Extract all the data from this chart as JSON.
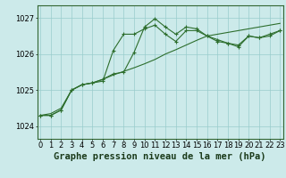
{
  "background_color": "#cceaea",
  "grid_color": "#99cccc",
  "line_color": "#2d6e2d",
  "xlabel": "Graphe pression niveau de la mer (hPa)",
  "xlabel_fontsize": 7.5,
  "tick_fontsize": 6,
  "ylabel_ticks": [
    1024,
    1025,
    1026,
    1027
  ],
  "xlim": [
    -0.3,
    23.3
  ],
  "ylim": [
    1023.65,
    1027.35
  ],
  "x": [
    0,
    1,
    2,
    3,
    4,
    5,
    6,
    7,
    8,
    9,
    10,
    11,
    12,
    13,
    14,
    15,
    16,
    17,
    18,
    19,
    20,
    21,
    22,
    23
  ],
  "line1_x": [
    0,
    1,
    2,
    3,
    4,
    5,
    6,
    7,
    8,
    9,
    10,
    11,
    12,
    13,
    14,
    15,
    16,
    17,
    18,
    19,
    20,
    21,
    22,
    23
  ],
  "line1_y": [
    1024.3,
    1024.3,
    1024.45,
    1025.0,
    1025.15,
    1025.2,
    1025.25,
    1026.1,
    1026.55,
    1026.55,
    1026.7,
    1026.8,
    1026.55,
    1026.35,
    1026.65,
    1026.65,
    1026.5,
    1026.35,
    1026.3,
    1026.25,
    1026.5,
    1026.45,
    1026.55,
    1026.65
  ],
  "line2_x": [
    0,
    1,
    2,
    3,
    4,
    5,
    6,
    7,
    8,
    9,
    10,
    11,
    12,
    13,
    14,
    15,
    16,
    17,
    18,
    19,
    20,
    21,
    22,
    23
  ],
  "line2_y": [
    1024.3,
    1024.3,
    1024.45,
    1025.0,
    1025.15,
    1025.2,
    1025.3,
    1025.45,
    1025.5,
    1026.05,
    1026.75,
    1026.98,
    1026.75,
    1026.55,
    1026.75,
    1026.7,
    1026.5,
    1026.4,
    1026.3,
    1026.2,
    1026.5,
    1026.45,
    1026.5,
    1026.65
  ],
  "line3_x": [
    0,
    1,
    2,
    3,
    4,
    5,
    6,
    7,
    8,
    9,
    10,
    11,
    12,
    13,
    14,
    15,
    16,
    17,
    18,
    19,
    20,
    21,
    22,
    23
  ],
  "line3_y": [
    1024.3,
    1024.35,
    1024.5,
    1025.0,
    1025.15,
    1025.2,
    1025.3,
    1025.42,
    1025.52,
    1025.62,
    1025.73,
    1025.85,
    1026.0,
    1026.12,
    1026.25,
    1026.38,
    1026.5,
    1026.55,
    1026.6,
    1026.65,
    1026.7,
    1026.75,
    1026.8,
    1026.85
  ]
}
